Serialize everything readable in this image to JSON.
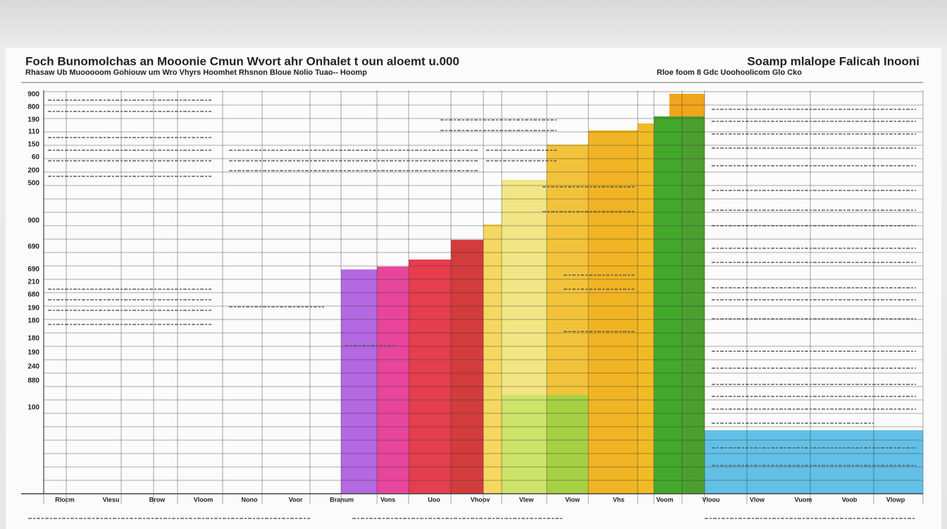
{
  "header": {
    "title": "Foch Bunomolchas an Mooonie Cmun Wvort ahr Onhalet t oun aloemt u.000",
    "subtitle": "Rhasaw Ub Muooooom Gohiouw um Wro Vhyrs Hoomhet Rhsnon Bloue Nolio Tuao-- Hoomp",
    "right_title": "Soamp mlalope Falicah Inooni",
    "right_subtitle": "Rloe foom 8 Gdc Uoohoolicom Glo Cko"
  },
  "axis": {
    "labels": [
      "900",
      "800",
      "190",
      "110",
      "150",
      "60",
      "200",
      "500",
      "900",
      "690",
      "690",
      "210",
      "680",
      "190",
      "180",
      "180",
      "190",
      "240",
      "880",
      "100"
    ]
  },
  "footer": {
    "labels": [
      "Rlocm",
      "Viesu",
      "Brow",
      "Vloom",
      "Nono",
      "Voor",
      "Branum",
      "Vons",
      "Uoo",
      "Vhoov",
      "Vlew",
      "Viow",
      "Vhs",
      "Voom",
      "Vloou",
      "Vlow",
      "Vuom",
      "Voob",
      "Vlowp"
    ]
  }
}
